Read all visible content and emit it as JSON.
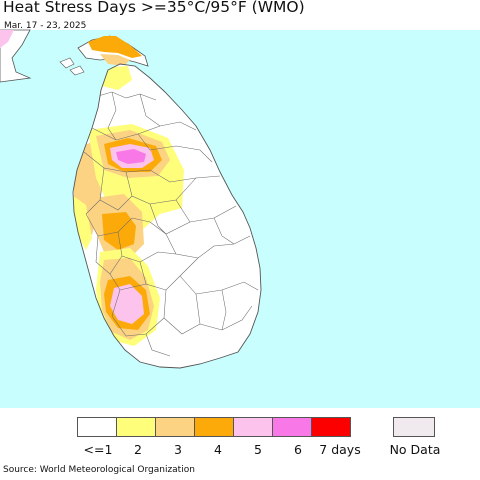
{
  "title": "Heat Stress Days >=35°C/95°F (WMO)",
  "subtitle": "Mar. 17 - 23, 2025",
  "source": "Source: World Meteorological Organization",
  "colors": {
    "ocean": "#c8fefe",
    "land": "#ffffff",
    "border": "#555555",
    "class_1": "#ffffff",
    "class_2": "#fefe7a",
    "class_3": "#fcd283",
    "class_4": "#fcaa0a",
    "class_5": "#fcc4ec",
    "class_6": "#f878e8",
    "class_7": "#fc0000",
    "no_data": "#f0eaee"
  },
  "legend": {
    "items": [
      {
        "label": "<=1",
        "color": "#ffffff"
      },
      {
        "label": "2",
        "color": "#fefe7a"
      },
      {
        "label": "3",
        "color": "#fcd283"
      },
      {
        "label": "4",
        "color": "#fcaa0a"
      },
      {
        "label": "5",
        "color": "#fcc4ec"
      },
      {
        "label": "6",
        "color": "#f878e8"
      },
      {
        "label": "7 days",
        "color": "#fc0000"
      }
    ],
    "no_data_label": "No Data",
    "no_data_color": "#f0eaee"
  }
}
